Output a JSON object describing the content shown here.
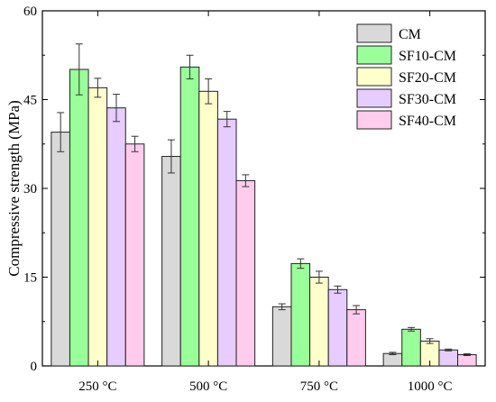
{
  "chart_data": {
    "type": "bar",
    "title": "",
    "xlabel": "",
    "ylabel": "Compressive strength (MPa)",
    "ylim": [
      0,
      60
    ],
    "yticks": [
      0,
      15,
      30,
      45,
      60
    ],
    "categories": [
      "250 °C",
      "500 °C",
      "750 °C",
      "1000 °C"
    ],
    "series": [
      {
        "name": "CM",
        "color": "#d9d9d9",
        "values": [
          39.5,
          35.4,
          10.0,
          2.1
        ],
        "errors": [
          3.3,
          2.8,
          0.5,
          0.2
        ]
      },
      {
        "name": "SF10-CM",
        "color": "#99ff99",
        "values": [
          50.1,
          50.5,
          17.3,
          6.2
        ],
        "errors": [
          4.3,
          2.0,
          0.8,
          0.3
        ]
      },
      {
        "name": "SF20-CM",
        "color": "#ffffcc",
        "values": [
          47.0,
          46.4,
          15.0,
          4.2
        ],
        "errors": [
          1.6,
          2.1,
          1.0,
          0.4
        ]
      },
      {
        "name": "SF30-CM",
        "color": "#e6ccff",
        "values": [
          43.6,
          41.7,
          12.9,
          2.7
        ],
        "errors": [
          2.3,
          1.3,
          0.6,
          0.15
        ]
      },
      {
        "name": "SF40-CM",
        "color": "#ffccee",
        "values": [
          37.5,
          31.3,
          9.5,
          1.9
        ],
        "errors": [
          1.3,
          1.0,
          0.7,
          0.15
        ]
      }
    ],
    "legend_position": "top-right",
    "grid": false
  }
}
